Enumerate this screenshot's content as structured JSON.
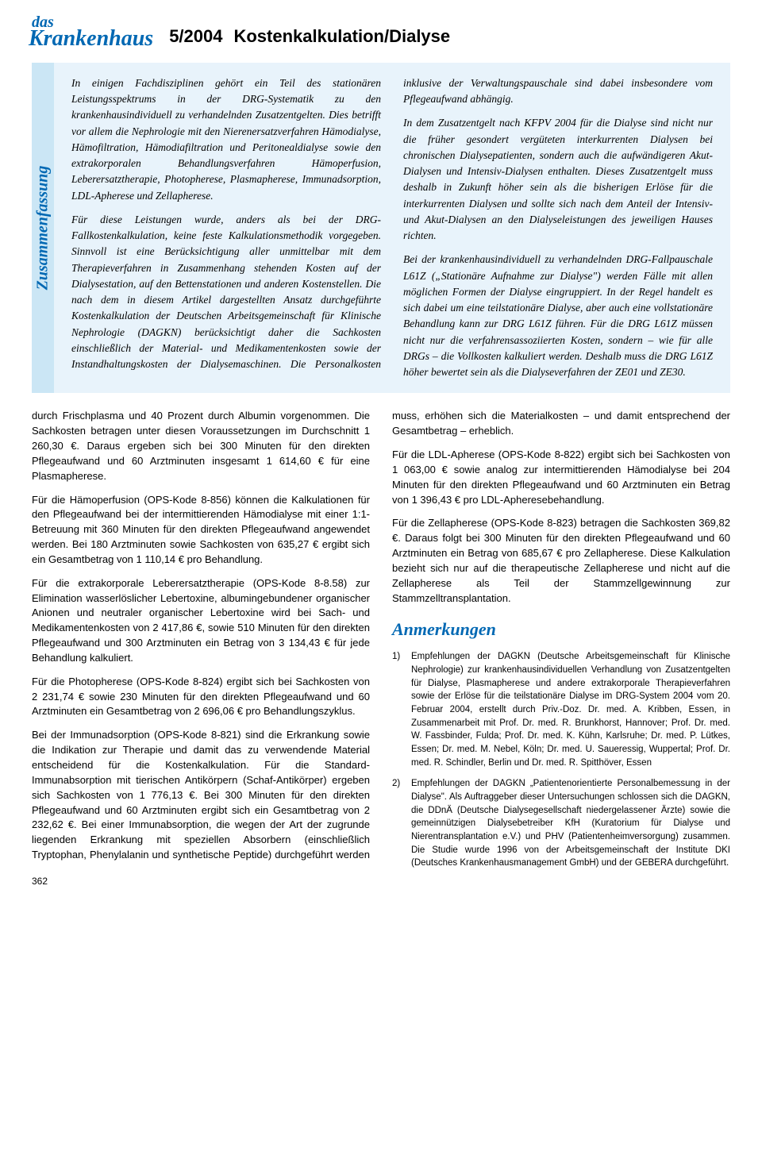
{
  "header": {
    "logo_line1": "das",
    "logo_line2": "Krankenhaus",
    "issue": "5/2004",
    "section": "Kostenkalkulation/Dialyse"
  },
  "summary": {
    "tab_label": "Zusammenfassung",
    "p1": "In einigen Fachdisziplinen gehört ein Teil des stationären Leistungsspektrums in der DRG-Systematik zu den krankenhausindividuell zu verhandelnden Zusatzentgelten. Dies betrifft vor allem die Nephrologie mit den Nierenersatzverfahren Hämodialyse, Hämofiltration, Hämodiafiltration und Peritonealdialyse sowie den extrakorporalen Behandlungsverfahren Hämoperfusion, Leberersatztherapie, Photopherese, Plasmapherese, Immunadsorption, LDL-Apherese und Zellapherese.",
    "p2": "Für diese Leistungen wurde, anders als bei der DRG-Fallkostenkalkulation, keine feste Kalkulationsmethodik vorgegeben. Sinnvoll ist eine Berücksichtigung aller unmittelbar mit dem Therapieverfahren in Zusammenhang stehenden Kosten auf der Dialysestation, auf den Bettenstationen und anderen Kostenstellen. Die nach dem in diesem Artikel dargestellten Ansatz durchgeführte Kostenkalkulation der Deutschen Arbeitsgemeinschaft für Klinische Nephrologie (DAGKN) berücksichtigt daher die Sachkosten einschließlich der Material- und Medikamentenkosten sowie der Instandhaltungskosten der Dialysemaschinen. Die Personalkosten inklusive der Verwaltungspauschale sind dabei insbesondere vom Pflegeaufwand abhängig.",
    "p3": "In dem Zusatzentgelt nach KFPV 2004 für die Dialyse sind nicht nur die früher gesondert vergüteten interkurrenten Dialysen bei chronischen Dialysepatienten, sondern auch die aufwändigeren Akut-Dialysen und Intensiv-Dialysen enthalten. Dieses Zusatzentgelt muss deshalb in Zukunft höher sein als die bisherigen Erlöse für die interkurrenten Dialysen und sollte sich nach dem Anteil der Intensiv- und Akut-Dialysen an den Dialyseleistungen des jeweiligen Hauses richten.",
    "p4": "Bei der krankenhausindividuell zu verhandelnden DRG-Fallpauschale L61Z („Stationäre Aufnahme zur Dialyse\") werden Fälle mit allen möglichen Formen der Dialyse eingruppiert. In der Regel handelt es sich dabei um eine teilstationäre Dialyse, aber auch eine vollstationäre Behandlung kann zur DRG L61Z führen. Für die DRG L61Z müssen nicht nur die verfahrensassoziierten Kosten, sondern – wie für alle DRGs – die Vollkosten kalkuliert werden. Deshalb muss die DRG L61Z höher bewertet sein als die Dialyseverfahren der ZE01 und ZE30."
  },
  "body": {
    "p1": "durch Frischplasma und 40 Prozent durch Albumin vorgenommen. Die Sachkosten betragen unter diesen Voraussetzungen im Durchschnitt 1 260,30 €. Daraus ergeben sich bei 300 Minuten für den direkten Pflegeaufwand und 60 Arztminuten insgesamt 1 614,60 € für eine Plasmapherese.",
    "p2": "Für die Hämoperfusion (OPS-Kode 8-856) können die Kalkulationen für den Pflegeaufwand bei der intermittierenden Hämodialyse mit einer 1:1-Betreuung mit 360 Minuten für den direkten Pflegeaufwand angewendet werden. Bei 180 Arztminuten sowie Sachkosten von 635,27 € ergibt sich ein Gesamtbetrag von 1 110,14 € pro Behandlung.",
    "p3": "Für die extrakorporale Leberersatztherapie (OPS-Kode 8-8.58) zur Elimination wasserlöslicher Lebertoxine, albumingebundener organischer Anionen und neutraler organischer Lebertoxine wird bei Sach- und Medikamentenkosten von 2 417,86 €, sowie 510 Minuten für den direkten Pflegeaufwand und 300 Arztminuten ein Betrag von 3 134,43 € für jede Behandlung kalkuliert.",
    "p4": "Für die Photopherese (OPS-Kode 8-824) ergibt sich bei Sachkosten von 2 231,74 € sowie 230 Minuten für den direkten Pflegeaufwand und 60 Arztminuten ein Gesamtbetrag von 2 696,06 € pro Behandlungszyklus.",
    "p5": "Bei der Immunadsorption (OPS-Kode 8-821) sind die Erkrankung sowie die Indikation zur Therapie und damit das zu verwendende Material entscheidend für die Kostenkalkulation. Für die Standard-Immunabsorption mit tierischen Antikörpern (Schaf-Antikörper) ergeben sich Sachkosten von 1 776,13 €. Bei 300 Minuten für den direkten Pflegeaufwand und 60 Arztminuten ergibt sich ein Gesamtbetrag von 2 232,62 €. Bei einer Immunabsorption, die wegen der Art der zugrunde liegenden Erkrankung mit speziellen Absorbern (einschließlich Tryptophan, Phenylalanin und synthetische Peptide) durchgeführt werden muss, erhöhen sich die Materialkosten – und damit entsprechend der Gesamtbetrag – erheblich.",
    "p6": "Für die LDL-Apherese (OPS-Kode 8-822) ergibt sich bei Sachkosten von 1 063,00 € sowie analog zur intermittierenden Hämodialyse bei 204 Minuten für den direkten Pflegeaufwand und 60 Arztminuten ein Betrag von 1 396,43 € pro LDL-Apheresebehandlung.",
    "p7": "Für die Zellapherese (OPS-Kode 8-823) betragen die Sachkosten 369,82 €. Daraus folgt bei 300 Minuten für den direkten Pflegeaufwand und 60 Arztminuten ein Betrag von 685,67 € pro Zellapherese. Diese Kalkulation bezieht sich nur auf die therapeutische Zellapherese und nicht auf die Zellapherese als Teil der Stammzellgewinnung zur Stammzelltransplantation."
  },
  "notes": {
    "heading": "Anmerkungen",
    "items": [
      {
        "num": "1)",
        "text": "Empfehlungen der DAGKN (Deutsche Arbeitsgemeinschaft für Klinische Nephrologie) zur krankenhausindividuellen Verhandlung von Zusatzentgelten für Dialyse, Plasmapherese und andere extrakorporale Therapieverfahren sowie der Erlöse für die teilstationäre Dialyse im DRG-System 2004 vom 20. Februar 2004, erstellt durch Priv.-Doz. Dr. med. A. Kribben, Essen, in Zusammenarbeit mit Prof. Dr. med. R. Brunkhorst, Hannover; Prof. Dr. med. W. Fassbinder, Fulda; Prof. Dr. med. K. Kühn, Karlsruhe; Dr. med. P. Lütkes, Essen; Dr. med. M. Nebel, Köln; Dr. med. U. Saueressig, Wuppertal; Prof. Dr. med. R. Schindler, Berlin und Dr. med. R. Spitthöver, Essen"
      },
      {
        "num": "2)",
        "text": "Empfehlungen der DAGKN „Patientenorientierte Personalbemessung in der Dialyse\". Als Auftraggeber dieser Untersuchungen schlossen sich die DAGKN, die DDnÄ (Deutsche Dialysegesellschaft niedergelassener Ärzte) sowie die gemeinnützigen Dialysebetreiber KfH (Kuratorium für Dialyse und Nierentransplantation e.V.) und PHV (Patientenheimversorgung) zusammen. Die Studie wurde 1996 von der Arbeitsgemeinschaft der Institute DKI (Deutsches Krankenhausmanagement GmbH) und der GEBERA durchgeführt."
      }
    ]
  },
  "page_number": "362"
}
